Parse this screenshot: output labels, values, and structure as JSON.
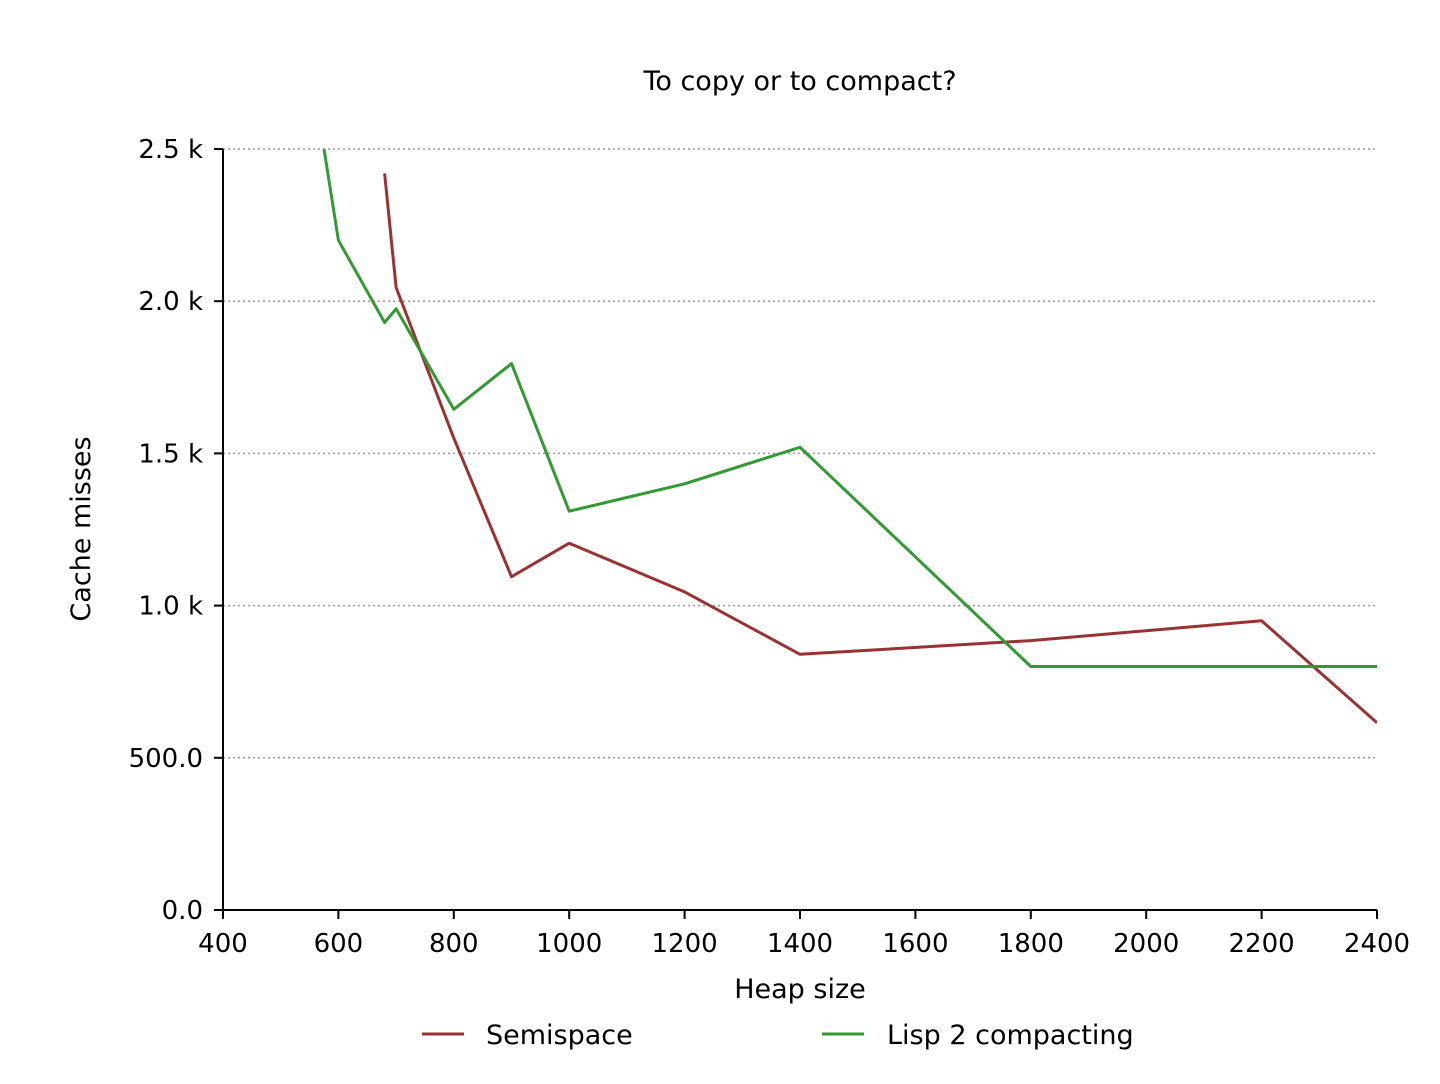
{
  "chart_data": {
    "type": "line",
    "title": "To copy or to compact?",
    "xlabel": "Heap size",
    "ylabel": "Cache misses",
    "xlim": [
      400,
      2400
    ],
    "ylim": [
      0,
      2500
    ],
    "x_ticks": [
      400,
      600,
      800,
      1000,
      1200,
      1400,
      1600,
      1800,
      2000,
      2200,
      2400
    ],
    "x_tick_labels": [
      "400",
      "600",
      "800",
      "1000",
      "1200",
      "1400",
      "1600",
      "1800",
      "2000",
      "2200",
      "2400"
    ],
    "y_ticks": [
      0,
      500,
      1000,
      1500,
      2000,
      2500
    ],
    "y_tick_labels": [
      "0.0",
      "500.0",
      "1.0 k",
      "1.5 k",
      "2.0 k",
      "2.5 k"
    ],
    "grid": "horizontal dotted",
    "legend_position": "bottom",
    "series": [
      {
        "name": "Semispace",
        "color": "#993333",
        "points": [
          [
            680,
            2420
          ],
          [
            700,
            2045
          ],
          [
            800,
            1550
          ],
          [
            900,
            1095
          ],
          [
            1000,
            1205
          ],
          [
            1200,
            1045
          ],
          [
            1400,
            840
          ],
          [
            1800,
            885
          ],
          [
            2200,
            950
          ],
          [
            2400,
            615
          ]
        ]
      },
      {
        "name": "Lisp 2 compacting",
        "color": "#339933",
        "points": [
          [
            575,
            2500
          ],
          [
            600,
            2200
          ],
          [
            680,
            1930
          ],
          [
            700,
            1975
          ],
          [
            800,
            1645
          ],
          [
            900,
            1795
          ],
          [
            1000,
            1310
          ],
          [
            1200,
            1400
          ],
          [
            1400,
            1520
          ],
          [
            1800,
            800
          ],
          [
            2400,
            800
          ]
        ]
      }
    ]
  }
}
